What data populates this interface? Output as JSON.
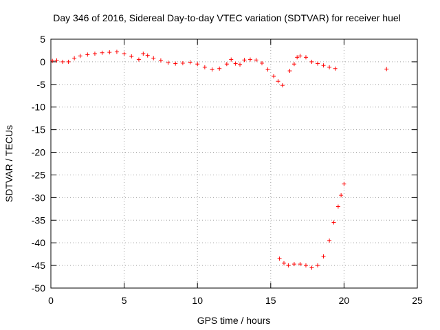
{
  "chart_data": {
    "type": "scatter",
    "title": "Day 346 of 2016, Sidereal Day-to-day VTEC variation (SDTVAR) for receiver huel",
    "xlabel": "GPS time / hours",
    "ylabel": "SDTVAR / TECUs",
    "xlim": [
      0,
      25
    ],
    "ylim": [
      -50,
      5
    ],
    "xticks": [
      0,
      5,
      10,
      15,
      20,
      25
    ],
    "yticks": [
      5,
      0,
      -5,
      -10,
      -15,
      -20,
      -25,
      -30,
      -35,
      -40,
      -45,
      -50
    ],
    "grid": true,
    "marker": "+",
    "series_color": "#ff0000",
    "series": [
      {
        "name": "SDTVAR",
        "x": [
          0.1,
          0.4,
          0.8,
          1.2,
          1.6,
          2.0,
          2.5,
          3.0,
          3.5,
          4.0,
          4.5,
          5.0,
          5.5,
          6.0,
          6.3,
          6.6,
          7.0,
          7.5,
          8.0,
          8.5,
          9.0,
          9.5,
          10.0,
          10.5,
          11.0,
          11.5,
          12.0,
          12.3,
          12.6,
          12.9,
          13.2,
          13.6,
          14.0,
          14.4,
          14.8,
          15.2,
          15.5,
          15.8,
          15.6,
          15.9,
          16.2,
          16.6,
          17.0,
          17.4,
          17.8,
          18.2,
          18.6,
          19.0,
          19.3,
          19.6,
          19.8,
          20.0,
          16.3,
          16.6,
          16.8,
          17.0,
          17.4,
          17.8,
          18.2,
          18.6,
          19.0,
          19.4,
          22.9
        ],
        "y": [
          0.2,
          0.3,
          0.0,
          0.0,
          0.8,
          1.3,
          1.6,
          1.8,
          2.0,
          2.1,
          2.2,
          1.8,
          1.2,
          0.5,
          1.8,
          1.4,
          0.8,
          0.3,
          -0.2,
          -0.4,
          -0.3,
          -0.1,
          -0.5,
          -1.2,
          -1.7,
          -1.5,
          -0.5,
          0.5,
          -0.4,
          -0.6,
          0.4,
          0.5,
          0.4,
          -0.3,
          -1.7,
          -3.2,
          -4.3,
          -5.2,
          -43.5,
          -44.5,
          -45.0,
          -44.7,
          -44.7,
          -45.0,
          -45.5,
          -45.0,
          -43.0,
          -39.5,
          -35.5,
          -32.0,
          -29.5,
          -27.0,
          -2.0,
          -0.5,
          1.0,
          1.3,
          1.0,
          0.0,
          -0.4,
          -0.8,
          -1.2,
          -1.5,
          -1.6
        ]
      }
    ]
  }
}
